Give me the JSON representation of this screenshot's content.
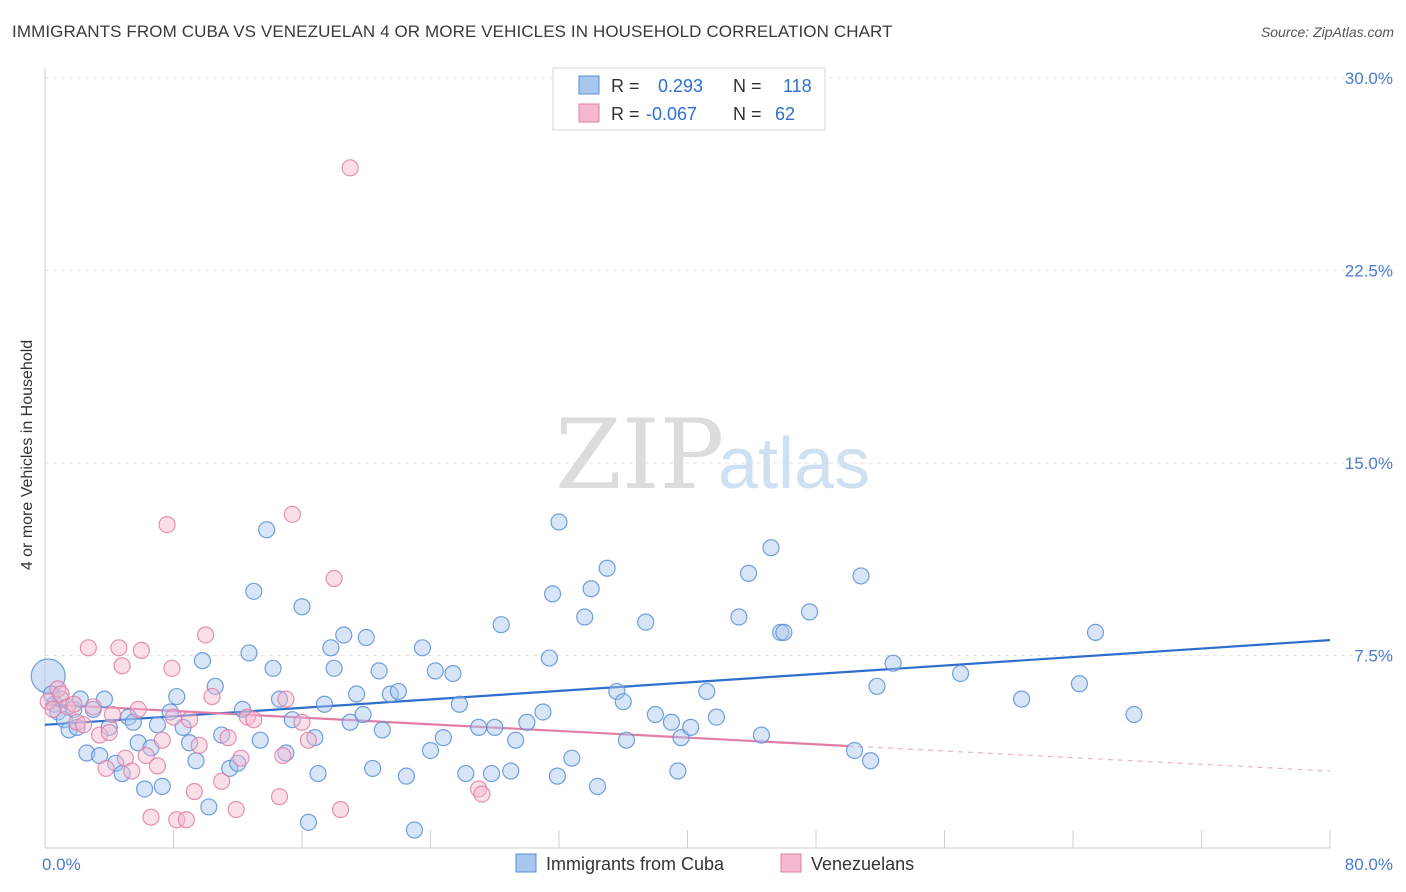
{
  "title": "IMMIGRANTS FROM CUBA VS VENEZUELAN 4 OR MORE VEHICLES IN HOUSEHOLD CORRELATION CHART",
  "source": "Source: ZipAtlas.com",
  "watermark": {
    "zip": "ZIP",
    "atlas": "atlas"
  },
  "chart_data": {
    "type": "scatter",
    "title": "IMMIGRANTS FROM CUBA VS VENEZUELAN 4 OR MORE VEHICLES IN HOUSEHOLD CORRELATION CHART",
    "xlabel": "",
    "ylabel": "4 or more Vehicles in Household",
    "xlim": [
      0,
      80
    ],
    "ylim": [
      0,
      30
    ],
    "x_tick_labels": [
      "0.0%",
      "80.0%"
    ],
    "y_ticks": [
      7.5,
      15.0,
      22.5,
      30.0
    ],
    "y_tick_labels": [
      "7.5%",
      "15.0%",
      "22.5%",
      "30.0%"
    ],
    "grid": true,
    "legend_top": [
      {
        "r_label": "R =",
        "r_value": "0.293",
        "n_label": "N =",
        "n_value": "118"
      },
      {
        "r_label": "R =",
        "r_value": "-0.067",
        "n_label": "N =",
        "n_value": "62"
      }
    ],
    "series": [
      {
        "name": "Immigrants from Cuba",
        "color": "#5b8fd6",
        "fill": "#a9c6ee",
        "trend": {
          "x0": 0,
          "y0": 4.8,
          "x1": 80,
          "y1": 8.1,
          "dashed_from": null
        },
        "points": [
          [
            0.2,
            6.7
          ],
          [
            0.4,
            6.0
          ],
          [
            0.6,
            5.6
          ],
          [
            0.8,
            5.3
          ],
          [
            1.0,
            5.8
          ],
          [
            1.2,
            5.0
          ],
          [
            1.5,
            4.6
          ],
          [
            1.8,
            5.4
          ],
          [
            2.0,
            4.7
          ],
          [
            2.2,
            5.8
          ],
          [
            2.6,
            3.7
          ],
          [
            3.0,
            5.4
          ],
          [
            3.4,
            3.6
          ],
          [
            3.7,
            5.8
          ],
          [
            4.0,
            4.7
          ],
          [
            4.4,
            3.3
          ],
          [
            4.8,
            2.9
          ],
          [
            5.2,
            5.1
          ],
          [
            5.5,
            4.9
          ],
          [
            5.8,
            4.1
          ],
          [
            6.2,
            2.3
          ],
          [
            6.6,
            3.9
          ],
          [
            7.0,
            4.8
          ],
          [
            7.3,
            2.4
          ],
          [
            7.8,
            5.3
          ],
          [
            8.2,
            5.9
          ],
          [
            8.6,
            4.7
          ],
          [
            9.0,
            4.1
          ],
          [
            9.4,
            3.4
          ],
          [
            9.8,
            7.3
          ],
          [
            10.2,
            1.6
          ],
          [
            10.6,
            6.3
          ],
          [
            11.0,
            4.4
          ],
          [
            11.5,
            3.1
          ],
          [
            12.0,
            3.3
          ],
          [
            12.3,
            5.4
          ],
          [
            12.7,
            7.6
          ],
          [
            13.0,
            10.0
          ],
          [
            13.4,
            4.2
          ],
          [
            13.8,
            12.4
          ],
          [
            14.2,
            7.0
          ],
          [
            14.6,
            5.8
          ],
          [
            15.0,
            3.7
          ],
          [
            15.4,
            5.0
          ],
          [
            16.0,
            9.4
          ],
          [
            16.4,
            1.0
          ],
          [
            16.8,
            4.3
          ],
          [
            17.0,
            2.9
          ],
          [
            17.4,
            5.6
          ],
          [
            17.8,
            7.8
          ],
          [
            18.0,
            7.0
          ],
          [
            18.6,
            8.3
          ],
          [
            19.0,
            4.9
          ],
          [
            19.4,
            6.0
          ],
          [
            19.8,
            5.2
          ],
          [
            20.0,
            8.2
          ],
          [
            20.4,
            3.1
          ],
          [
            20.8,
            6.9
          ],
          [
            21.0,
            4.6
          ],
          [
            21.5,
            6.0
          ],
          [
            22.0,
            6.1
          ],
          [
            22.5,
            2.8
          ],
          [
            23.0,
            0.7
          ],
          [
            23.5,
            7.8
          ],
          [
            24.0,
            3.8
          ],
          [
            24.3,
            6.9
          ],
          [
            24.8,
            4.3
          ],
          [
            25.4,
            6.8
          ],
          [
            25.8,
            5.6
          ],
          [
            26.2,
            2.9
          ],
          [
            27.0,
            4.7
          ],
          [
            27.8,
            2.9
          ],
          [
            28.0,
            4.7
          ],
          [
            28.4,
            8.7
          ],
          [
            29.0,
            3.0
          ],
          [
            29.3,
            4.2
          ],
          [
            30.0,
            4.9
          ],
          [
            31.0,
            5.3
          ],
          [
            31.4,
            7.4
          ],
          [
            31.6,
            9.9
          ],
          [
            31.9,
            2.8
          ],
          [
            32.0,
            12.7
          ],
          [
            32.8,
            3.5
          ],
          [
            33.6,
            9.0
          ],
          [
            34.0,
            10.1
          ],
          [
            34.4,
            2.4
          ],
          [
            35.0,
            10.9
          ],
          [
            35.6,
            6.1
          ],
          [
            36.0,
            5.7
          ],
          [
            36.2,
            4.2
          ],
          [
            37.4,
            8.8
          ],
          [
            38.0,
            5.2
          ],
          [
            39.0,
            4.9
          ],
          [
            39.4,
            3.0
          ],
          [
            39.6,
            4.3
          ],
          [
            40.2,
            4.7
          ],
          [
            41.2,
            6.1
          ],
          [
            41.8,
            5.1
          ],
          [
            43.2,
            9.0
          ],
          [
            43.8,
            10.7
          ],
          [
            44.6,
            4.4
          ],
          [
            45.2,
            11.7
          ],
          [
            45.8,
            8.4
          ],
          [
            46.0,
            8.4
          ],
          [
            47.6,
            9.2
          ],
          [
            50.4,
            3.8
          ],
          [
            50.8,
            10.6
          ],
          [
            51.4,
            3.4
          ],
          [
            51.8,
            6.3
          ],
          [
            52.8,
            7.2
          ],
          [
            57.0,
            6.8
          ],
          [
            60.8,
            5.8
          ],
          [
            64.4,
            6.4
          ],
          [
            65.4,
            8.4
          ],
          [
            67.8,
            5.2
          ]
        ]
      },
      {
        "name": "Venezuelans",
        "color": "#e07ea6",
        "fill": "#f4b9cf",
        "trend": {
          "x0": 0,
          "y0": 5.6,
          "x1": 80,
          "y1": 3.0,
          "dashed_from": 50
        },
        "points": [
          [
            0.2,
            5.7
          ],
          [
            0.5,
            5.4
          ],
          [
            0.8,
            6.2
          ],
          [
            1.0,
            6.0
          ],
          [
            1.4,
            5.5
          ],
          [
            1.8,
            5.6
          ],
          [
            2.0,
            4.9
          ],
          [
            2.4,
            4.8
          ],
          [
            2.7,
            7.8
          ],
          [
            3.0,
            5.5
          ],
          [
            3.4,
            4.4
          ],
          [
            3.8,
            3.1
          ],
          [
            4.0,
            4.5
          ],
          [
            4.2,
            5.2
          ],
          [
            4.6,
            7.8
          ],
          [
            4.8,
            7.1
          ],
          [
            5.0,
            3.5
          ],
          [
            5.4,
            3.0
          ],
          [
            5.8,
            5.4
          ],
          [
            6.0,
            7.7
          ],
          [
            6.3,
            3.6
          ],
          [
            6.6,
            1.2
          ],
          [
            7.0,
            3.2
          ],
          [
            7.3,
            4.2
          ],
          [
            7.6,
            12.6
          ],
          [
            7.9,
            7.0
          ],
          [
            8.0,
            5.1
          ],
          [
            8.2,
            1.1
          ],
          [
            8.8,
            1.1
          ],
          [
            9.0,
            5.0
          ],
          [
            9.3,
            2.2
          ],
          [
            9.6,
            4.0
          ],
          [
            10.0,
            8.3
          ],
          [
            10.4,
            5.9
          ],
          [
            11.0,
            2.6
          ],
          [
            11.4,
            4.3
          ],
          [
            11.9,
            1.5
          ],
          [
            12.2,
            3.5
          ],
          [
            12.6,
            5.1
          ],
          [
            13.0,
            5.0
          ],
          [
            14.6,
            2.0
          ],
          [
            14.8,
            3.6
          ],
          [
            15.0,
            5.8
          ],
          [
            15.4,
            13.0
          ],
          [
            16.0,
            4.9
          ],
          [
            16.4,
            4.2
          ],
          [
            18.0,
            10.5
          ],
          [
            18.4,
            1.5
          ],
          [
            19.0,
            26.5
          ],
          [
            27.0,
            2.3
          ],
          [
            27.2,
            2.1
          ]
        ]
      }
    ]
  }
}
